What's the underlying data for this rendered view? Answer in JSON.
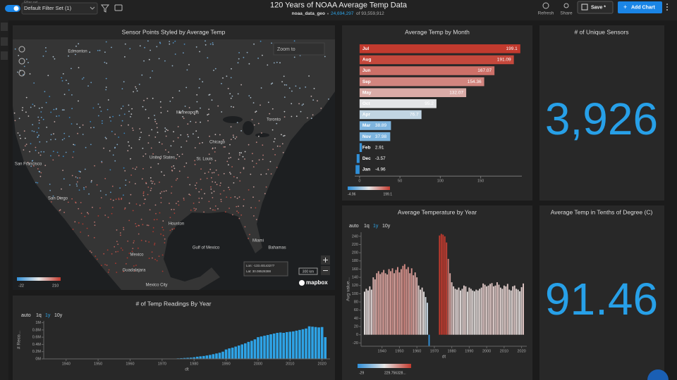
{
  "header": {
    "filter_label": "Filter set",
    "filter_name": "Default Filter Set (1)",
    "title": "120 Years of NOAA Average Temp Data",
    "dataset": "noaa_data_geo",
    "filtered_count": "24,694,297",
    "total_count": "of 93,559,912",
    "buttons": [
      "Refresh",
      "Share",
      "Save *",
      "Add Chart"
    ]
  },
  "map": {
    "title": "Sensor Points Styled by Average Temp",
    "zoom_label": "Zoom to",
    "scale_label": "300 km",
    "attribution": "mapbox",
    "lon": "Lon: -133.40143277",
    "lat": "Lat: 30.08528388",
    "legend": {
      "min": -22,
      "max": 210
    },
    "labels": [
      "Edmonton",
      "Minneapolis",
      "Toronto",
      "Chicago",
      "United States",
      "St. Louis",
      "San Francisco",
      "San Diego",
      "Houston",
      "Miami",
      "Bahamas",
      "Mexico",
      "Guadalajara",
      "Mexico City",
      "Gulf of Mexico"
    ]
  },
  "chart_data": [
    {
      "type": "hbar",
      "title": "Average Temp by Month",
      "categories": [
        "Jul",
        "Aug",
        "Jun",
        "Sep",
        "May",
        "Oct",
        "Apr",
        "Mar",
        "Nov",
        "Feb",
        "Dec",
        "Jan"
      ],
      "values": [
        199.1,
        191.09,
        167.07,
        154.36,
        132.07,
        95.2,
        76.7,
        38.89,
        37.98,
        2.91,
        -3.57,
        -4.96
      ],
      "xlim": [
        -6,
        201
      ],
      "xticks": [
        0,
        50,
        100,
        150
      ],
      "colors": [
        "#2f8fd8",
        "#e6e6e6",
        "#c23a2e"
      ],
      "color_scale": {
        "min": -4.96,
        "max": 199.1
      }
    },
    {
      "type": "bar",
      "title": "Average Temperature by Year",
      "xlabel": "dt",
      "ylabel": "Avg value...",
      "time_grains": [
        "auto",
        "1q",
        "1y",
        "10y"
      ],
      "selected_grain": "1y",
      "x": [
        1930,
        1931,
        1932,
        1933,
        1934,
        1935,
        1936,
        1937,
        1938,
        1939,
        1940,
        1941,
        1942,
        1943,
        1944,
        1945,
        1946,
        1947,
        1948,
        1949,
        1950,
        1951,
        1952,
        1953,
        1954,
        1955,
        1956,
        1957,
        1958,
        1959,
        1960,
        1961,
        1962,
        1963,
        1964,
        1965,
        1966,
        1967,
        1968,
        1969,
        1970,
        1971,
        1972,
        1973,
        1974,
        1975,
        1976,
        1977,
        1978,
        1979,
        1980,
        1981,
        1982,
        1983,
        1984,
        1985,
        1986,
        1987,
        1988,
        1989,
        1990,
        1991,
        1992,
        1993,
        1994,
        1995,
        1996,
        1997,
        1998,
        1999,
        2000,
        2001,
        2002,
        2003,
        2004,
        2005,
        2006,
        2007,
        2008,
        2009,
        2010,
        2011,
        2012,
        2013,
        2014,
        2015,
        2016,
        2017,
        2018,
        2019,
        2020,
        2021
      ],
      "values": [
        105,
        112,
        108,
        118,
        110,
        140,
        135,
        150,
        155,
        148,
        152,
        158,
        150,
        147,
        160,
        155,
        162,
        150,
        158,
        165,
        152,
        160,
        168,
        172,
        160,
        165,
        150,
        162,
        145,
        152,
        140,
        120,
        110,
        115,
        105,
        92,
        78,
        -27,
        null,
        null,
        null,
        null,
        null,
        242,
        246,
        244,
        240,
        225,
        185,
        150,
        128,
        118,
        112,
        110,
        115,
        108,
        112,
        120,
        118,
        105,
        115,
        112,
        108,
        106,
        110,
        108,
        112,
        115,
        125,
        122,
        118,
        120,
        124,
        126,
        118,
        120,
        128,
        122,
        115,
        112,
        120,
        118,
        124,
        110,
        108,
        118,
        120,
        112,
        110,
        106,
        116,
        125
      ],
      "xlim": [
        1928,
        2023
      ],
      "xticks": [
        1940,
        1950,
        1960,
        1970,
        1980,
        1990,
        2000,
        2010,
        2020
      ],
      "ylim": [
        -28,
        250
      ],
      "yticks": [
        -20,
        0,
        20,
        40,
        60,
        80,
        100,
        120,
        140,
        160,
        180,
        200,
        220,
        240
      ],
      "colors": [
        "#2f8fd8",
        "#e6e6e6",
        "#c23a2e"
      ],
      "color_scale": {
        "min": -29,
        "max": 229.756328,
        "max_label": "229.756328..."
      }
    },
    {
      "type": "bar",
      "title": "# of Temp Readings By Year",
      "xlabel": "dt",
      "ylabel": "# Reco...",
      "color": "#2ea3e6",
      "time_grains": [
        "auto",
        "1q",
        "1y",
        "10y"
      ],
      "selected_grain": "1y",
      "x": [
        1975,
        1976,
        1977,
        1978,
        1979,
        1980,
        1981,
        1982,
        1983,
        1984,
        1985,
        1986,
        1987,
        1988,
        1989,
        1990,
        1991,
        1992,
        1993,
        1994,
        1995,
        1996,
        1997,
        1998,
        1999,
        2000,
        2001,
        2002,
        2003,
        2004,
        2005,
        2006,
        2007,
        2008,
        2009,
        2010,
        2011,
        2012,
        2013,
        2014,
        2015,
        2016,
        2017,
        2018,
        2019,
        2020,
        2021
      ],
      "values": [
        15000,
        20000,
        25000,
        30000,
        35000,
        45000,
        60000,
        70000,
        80000,
        95000,
        110000,
        130000,
        150000,
        170000,
        200000,
        260000,
        290000,
        310000,
        340000,
        370000,
        400000,
        430000,
        470000,
        500000,
        540000,
        600000,
        620000,
        640000,
        660000,
        680000,
        700000,
        720000,
        730000,
        720000,
        740000,
        750000,
        760000,
        780000,
        800000,
        820000,
        840000,
        900000,
        890000,
        880000,
        870000,
        880000,
        600000
      ],
      "xlim": [
        1933,
        2022.5
      ],
      "xticks": [
        1940,
        1950,
        1960,
        1970,
        1980,
        1990,
        2000,
        2010,
        2020
      ],
      "ylim": [
        0,
        1050000
      ],
      "yticks": [
        {
          "value": 0,
          "label": "0M"
        },
        {
          "value": 200000,
          "label": "0.2M"
        },
        {
          "value": 400000,
          "label": "0.4M"
        },
        {
          "value": 600000,
          "label": "0.6M"
        },
        {
          "value": 800000,
          "label": "0.8M"
        },
        {
          "value": 1000000,
          "label": "1M"
        }
      ]
    }
  ],
  "kpis": [
    {
      "title": "# of Unique Sensors",
      "value": 3926,
      "value_label": "3,926"
    },
    {
      "title": "Average Temp in Tenths of Degree (C)",
      "value": 91.46
    }
  ]
}
